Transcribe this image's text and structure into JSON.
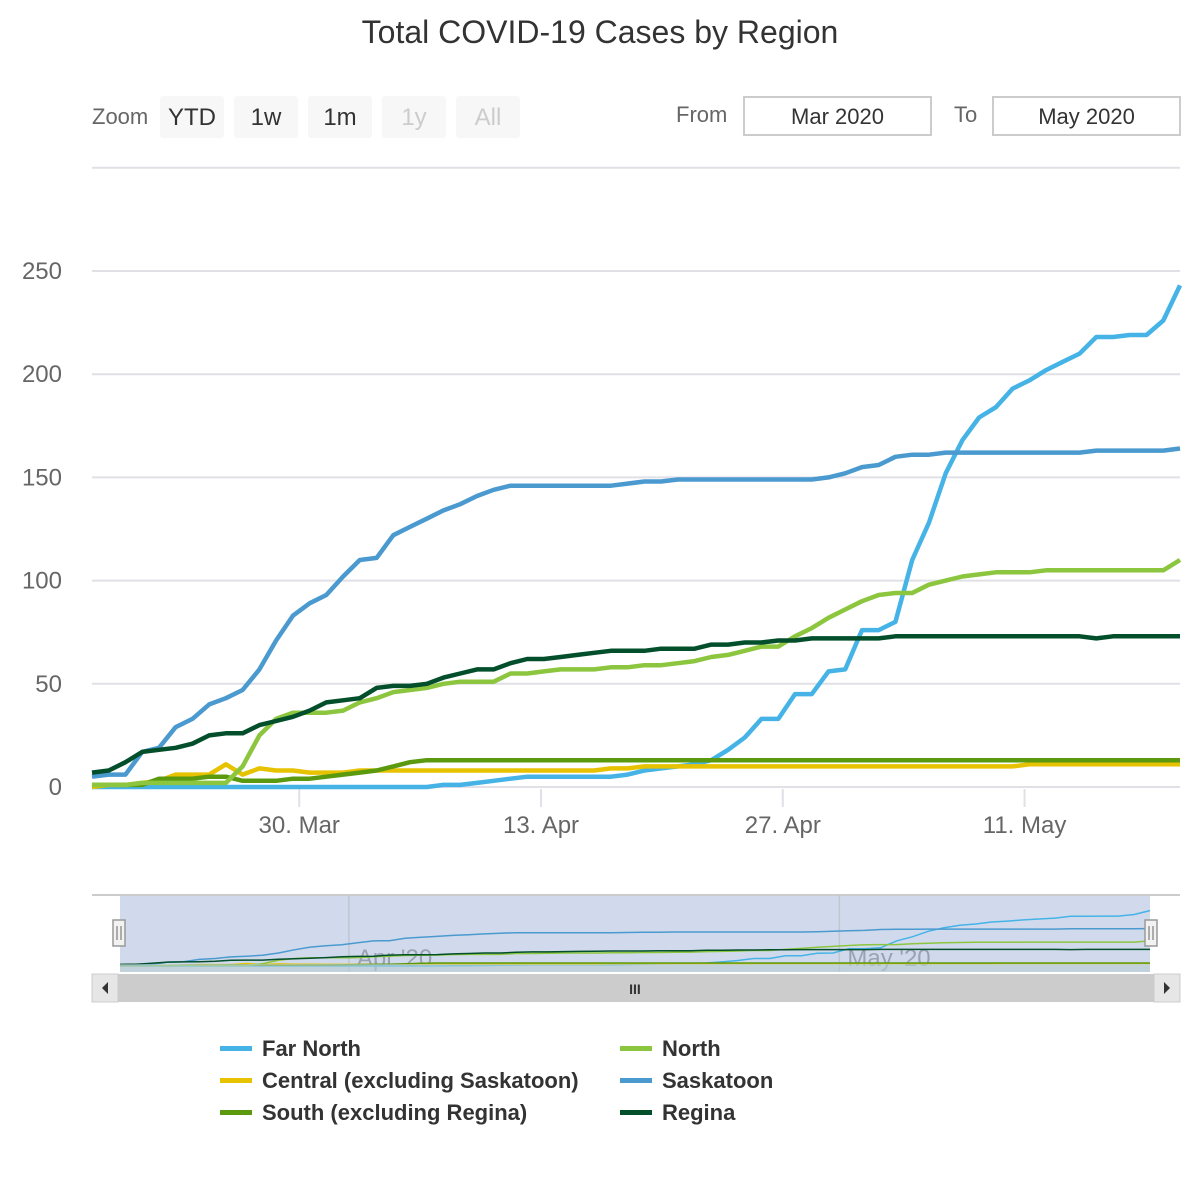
{
  "chart_data": {
    "type": "line",
    "title": "Total COVID-19 Cases by Region",
    "xlabel": "",
    "ylabel": "",
    "ylim": [
      0,
      300
    ],
    "yticks": [
      0,
      50,
      100,
      150,
      200,
      250
    ],
    "xticks": [
      {
        "date": "2020-03-30",
        "label": "30. Mar"
      },
      {
        "date": "2020-04-13",
        "label": "13. Apr"
      },
      {
        "date": "2020-04-27",
        "label": "27. Apr"
      },
      {
        "date": "2020-05-11",
        "label": "11. May"
      }
    ],
    "x_start": "2020-03-18",
    "x_end": "2020-05-20",
    "grid": true,
    "legend_position": "bottom",
    "series": [
      {
        "name": "Far North",
        "color": "#45b3e6",
        "values": [
          0,
          0,
          0,
          0,
          0,
          0,
          0,
          0,
          0,
          0,
          0,
          0,
          0,
          0,
          0,
          0,
          0,
          0,
          0,
          0,
          0,
          1,
          1,
          2,
          3,
          4,
          5,
          5,
          5,
          5,
          5,
          5,
          6,
          8,
          9,
          10,
          11,
          13,
          18,
          24,
          33,
          33,
          45,
          45,
          56,
          57,
          76,
          76,
          80,
          110,
          128,
          152,
          168,
          179,
          184,
          193,
          197,
          202,
          206,
          210,
          218,
          218,
          219,
          219,
          226,
          243
        ]
      },
      {
        "name": "Central (excluding Saskatoon)",
        "color": "#e6c200",
        "values": [
          0,
          1,
          1,
          2,
          3,
          6,
          6,
          6,
          11,
          6,
          9,
          8,
          8,
          7,
          7,
          7,
          8,
          8,
          8,
          8,
          8,
          8,
          8,
          8,
          8,
          8,
          8,
          8,
          8,
          8,
          8,
          9,
          9,
          10,
          10,
          10,
          10,
          10,
          10,
          10,
          10,
          10,
          10,
          10,
          10,
          10,
          10,
          10,
          10,
          10,
          10,
          10,
          10,
          10,
          10,
          10,
          11,
          11,
          11,
          11,
          11,
          11,
          11,
          11,
          11,
          11
        ]
      },
      {
        "name": "South (excluding Regina)",
        "color": "#5b9a0e",
        "values": [
          1,
          1,
          1,
          1,
          4,
          4,
          4,
          5,
          5,
          3,
          3,
          3,
          4,
          4,
          5,
          6,
          7,
          8,
          10,
          12,
          13,
          13,
          13,
          13,
          13,
          13,
          13,
          13,
          13,
          13,
          13,
          13,
          13,
          13,
          13,
          13,
          13,
          13,
          13,
          13,
          13,
          13,
          13,
          13,
          13,
          13,
          13,
          13,
          13,
          13,
          13,
          13,
          13,
          13,
          13,
          13,
          13,
          13,
          13,
          13,
          13,
          13,
          13,
          13,
          13,
          13
        ]
      },
      {
        "name": "North",
        "color": "#8cc63e",
        "values": [
          1,
          1,
          1,
          2,
          2,
          2,
          2,
          2,
          2,
          10,
          25,
          33,
          36,
          36,
          36,
          37,
          41,
          43,
          46,
          47,
          48,
          50,
          51,
          51,
          51,
          55,
          55,
          56,
          57,
          57,
          57,
          58,
          58,
          59,
          59,
          60,
          61,
          63,
          64,
          66,
          68,
          68,
          73,
          77,
          82,
          86,
          90,
          93,
          94,
          94,
          98,
          100,
          102,
          103,
          104,
          104,
          104,
          105,
          105,
          105,
          105,
          105,
          105,
          105,
          105,
          110
        ]
      },
      {
        "name": "Saskatoon",
        "color": "#4a9ad0",
        "values": [
          5,
          6,
          6,
          17,
          19,
          29,
          33,
          40,
          43,
          47,
          57,
          71,
          83,
          89,
          93,
          102,
          110,
          111,
          122,
          126,
          130,
          134,
          137,
          141,
          144,
          146,
          146,
          146,
          146,
          146,
          146,
          146,
          147,
          148,
          148,
          149,
          149,
          149,
          149,
          149,
          149,
          149,
          149,
          149,
          150,
          152,
          155,
          156,
          160,
          161,
          161,
          162,
          162,
          162,
          162,
          162,
          162,
          162,
          162,
          162,
          163,
          163,
          163,
          163,
          163,
          164
        ]
      },
      {
        "name": "Regina",
        "color": "#034f2b",
        "values": [
          7,
          8,
          12,
          17,
          18,
          19,
          21,
          25,
          26,
          26,
          30,
          32,
          34,
          37,
          41,
          42,
          43,
          48,
          49,
          49,
          50,
          53,
          55,
          57,
          57,
          60,
          62,
          62,
          63,
          64,
          65,
          66,
          66,
          66,
          67,
          67,
          67,
          69,
          69,
          70,
          70,
          71,
          71,
          72,
          72,
          72,
          72,
          72,
          73,
          73,
          73,
          73,
          73,
          73,
          73,
          73,
          73,
          73,
          73,
          73,
          72,
          73,
          73,
          73,
          73,
          73
        ]
      }
    ],
    "navigator": {
      "labels": [
        "Apr '20",
        "May '20"
      ],
      "scrollbar_grip": "III"
    }
  },
  "range_selector": {
    "zoom_label": "Zoom",
    "buttons": [
      {
        "label": "YTD",
        "enabled": true
      },
      {
        "label": "1w",
        "enabled": true
      },
      {
        "label": "1m",
        "enabled": true
      },
      {
        "label": "1y",
        "enabled": false
      },
      {
        "label": "All",
        "enabled": false
      }
    ],
    "from_label": "From",
    "from_value": "Mar 2020",
    "to_label": "To",
    "to_value": "May 2020"
  },
  "icons": {
    "left_arrow": "scroll-left-icon",
    "right_arrow": "scroll-right-icon",
    "handle": "navigator-handle-icon"
  }
}
